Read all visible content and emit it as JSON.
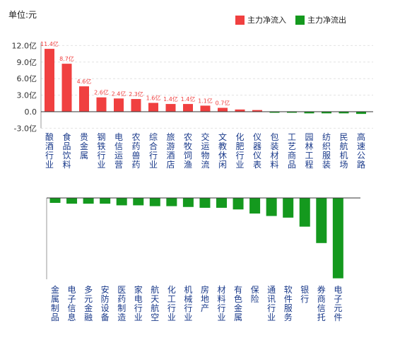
{
  "unit_label": "单位:元",
  "legend": [
    {
      "label": "主力净流入",
      "color": "#f04040"
    },
    {
      "label": "主力净流出",
      "color": "#14991e"
    }
  ],
  "chart_data": [
    {
      "type": "bar",
      "ylim": [
        -3.0,
        12.0
      ],
      "yticks": [
        "12.0亿",
        "9.0亿",
        "6.0亿",
        "3.0亿",
        "0.0",
        "-3.0亿"
      ],
      "ytick_values": [
        12.0,
        9.0,
        6.0,
        3.0,
        0.0,
        -3.0
      ],
      "grid": true,
      "categories": [
        "酿酒行业",
        "食品饮料",
        "贵金属",
        "钢铁行业",
        "电信运营",
        "农药兽药",
        "综合行业",
        "旅游酒店",
        "农牧饲渔",
        "交运物流",
        "文教休闲",
        "化肥行业",
        "仪器仪表",
        "包装材料",
        "工艺商品",
        "园林工程",
        "纺织服装",
        "民航机场",
        "高速公路"
      ],
      "values": [
        11.4,
        8.7,
        4.6,
        2.6,
        2.4,
        2.3,
        1.6,
        1.4,
        1.4,
        1.1,
        0.7,
        0.4,
        0.3,
        -0.1,
        -0.1,
        -0.3,
        -0.3,
        -0.3,
        -0.4
      ],
      "data_labels": [
        "11.4亿",
        "8.7亿",
        "4.6亿",
        "2.6亿",
        "2.4亿",
        "2.3亿",
        "1.6亿",
        "1.4亿",
        "1.4亿",
        "1.1亿",
        "0.7亿",
        "",
        "",
        "",
        "",
        "",
        "",
        "",
        ""
      ]
    },
    {
      "type": "bar",
      "categories": [
        "金属制品",
        "电子信息",
        "多元金融",
        "安防设备",
        "医药制造",
        "家电行业",
        "航天航空",
        "化工行业",
        "机械行业",
        "房地产",
        "材料行业",
        "有色金属",
        "保险",
        "通讯行业",
        "软件服务",
        "银行",
        "券商信托",
        "电子元件"
      ],
      "values": [
        -0.6,
        -0.7,
        -0.7,
        -0.7,
        -0.9,
        -0.9,
        -1.0,
        -1.0,
        -1.1,
        -1.2,
        -1.2,
        -1.4,
        -1.9,
        -2.2,
        -2.4,
        -3.5,
        -5.5,
        -9.8
      ],
      "ylim": [
        -10.0,
        0.0
      ]
    }
  ]
}
